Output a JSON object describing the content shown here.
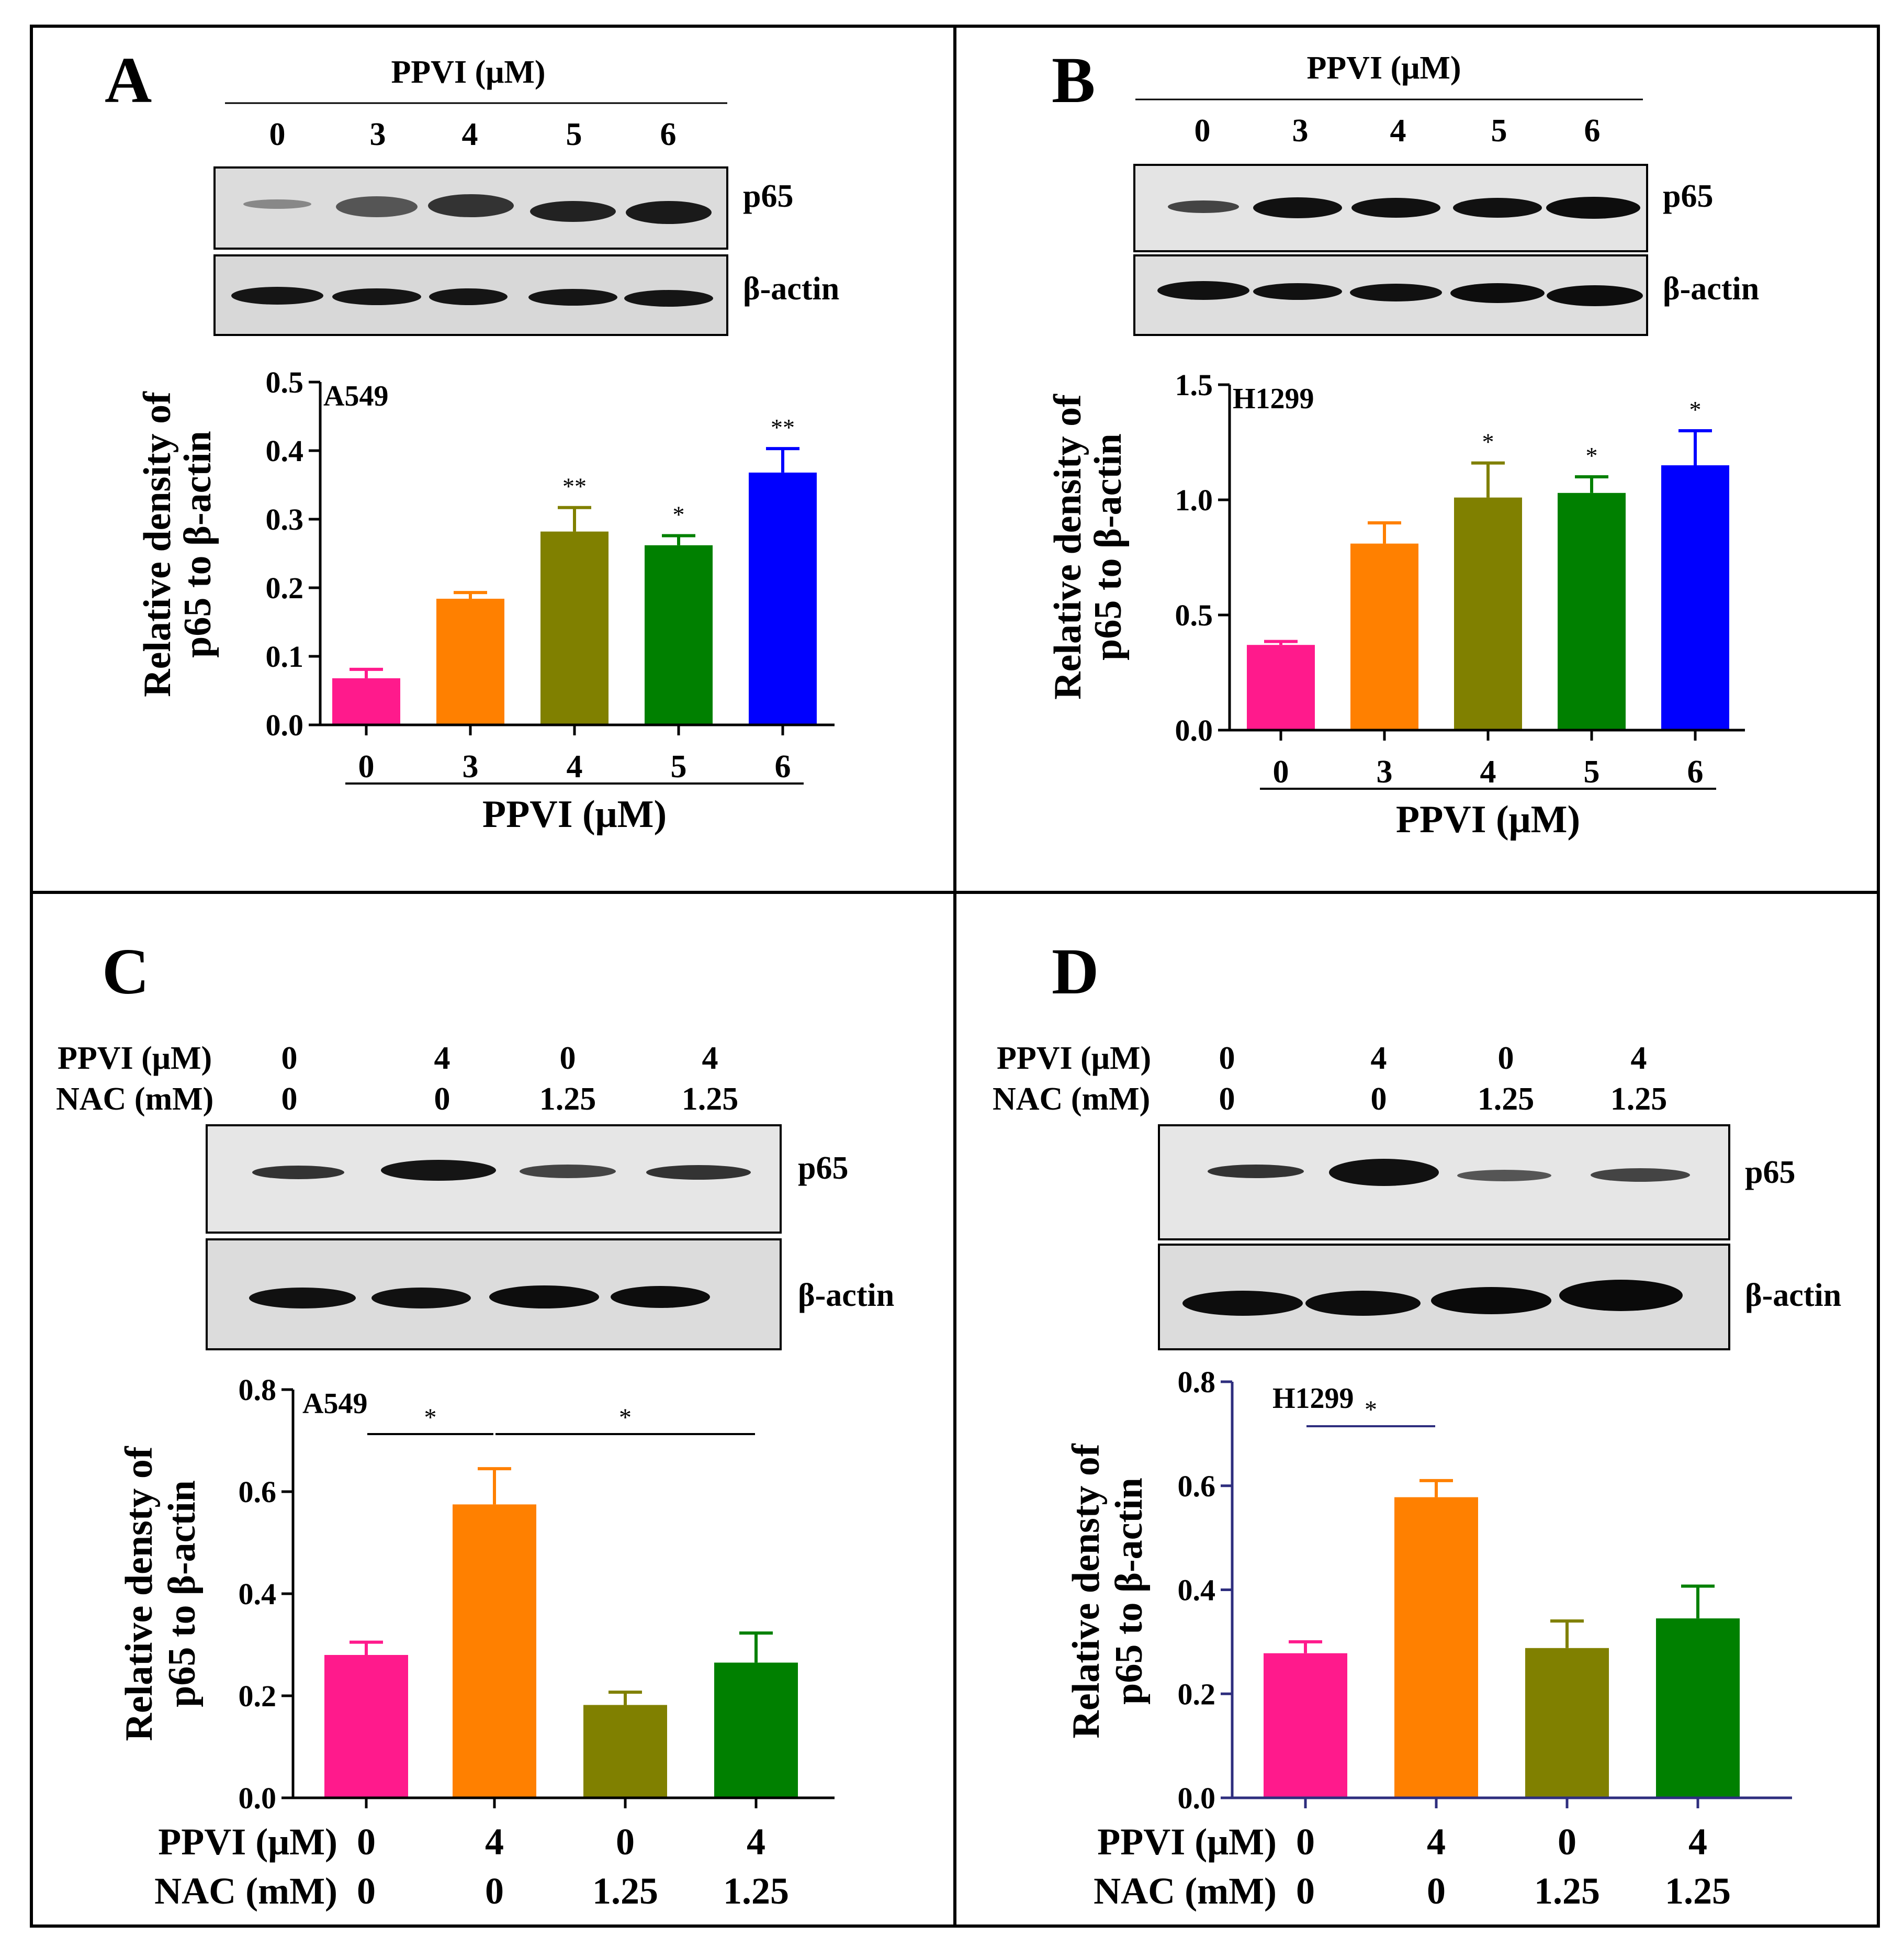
{
  "panels": [
    {
      "letter": "A",
      "blot": {
        "header_title": "PPVI (μM)",
        "header_lanes": [
          "0",
          "3",
          "4",
          "5",
          "6"
        ],
        "band_labels": [
          "p65",
          "β-actin"
        ]
      },
      "chart_data": {
        "type": "bar",
        "cell_line": "A549",
        "ylabel_lines": [
          "Relative density of",
          "p65 to β-actin"
        ],
        "xlabel": "PPVI (μM)",
        "categories": [
          "0",
          "3",
          "4",
          "5",
          "6"
        ],
        "values": [
          0.068,
          0.184,
          0.282,
          0.262,
          0.368
        ],
        "errors": [
          0.013,
          0.009,
          0.035,
          0.014,
          0.035
        ],
        "significance": [
          "",
          "",
          "**",
          "*",
          "**"
        ],
        "colors": [
          "#ff1a8c",
          "#ff8000",
          "#808000",
          "#008000",
          "#0000ff"
        ],
        "ylim": [
          0,
          0.5
        ],
        "yticks": [
          "0.0",
          "0.1",
          "0.2",
          "0.3",
          "0.4",
          "0.5"
        ]
      }
    },
    {
      "letter": "B",
      "blot": {
        "header_title": "PPVI (μM)",
        "header_lanes": [
          "0",
          "3",
          "4",
          "5",
          "6"
        ],
        "band_labels": [
          "p65",
          "β-actin"
        ]
      },
      "chart_data": {
        "type": "bar",
        "cell_line": "H1299",
        "ylabel_lines": [
          "Relative density of",
          "p65 to β-actin"
        ],
        "xlabel": "PPVI (μM)",
        "categories": [
          "0",
          "3",
          "4",
          "5",
          "6"
        ],
        "values": [
          0.37,
          0.81,
          1.01,
          1.03,
          1.15
        ],
        "errors": [
          0.015,
          0.09,
          0.15,
          0.07,
          0.15
        ],
        "significance": [
          "",
          "",
          "*",
          "*",
          "*"
        ],
        "colors": [
          "#ff1a8c",
          "#ff8000",
          "#808000",
          "#008000",
          "#0000ff"
        ],
        "ylim": [
          0,
          1.5
        ],
        "yticks": [
          "0.0",
          "0.5",
          "1.0",
          "1.5"
        ]
      }
    },
    {
      "letter": "C",
      "blot": {
        "row_labels": [
          "PPVI (μM)",
          "NAC (mM)"
        ],
        "row_values": [
          [
            "0",
            "4",
            "0",
            "4"
          ],
          [
            "0",
            "0",
            "1.25",
            "1.25"
          ]
        ],
        "band_labels": [
          "p65",
          "β-actin"
        ]
      },
      "chart_data": {
        "type": "bar",
        "cell_line": "A549",
        "ylabel_lines": [
          "Relative densty of",
          "p65 to β-actin"
        ],
        "row_labels": [
          "PPVI (μM)",
          "NAC (mM)"
        ],
        "rows": [
          [
            "0",
            "4",
            "0",
            "4"
          ],
          [
            "0",
            "0",
            "1.25",
            "1.25"
          ]
        ],
        "values": [
          0.28,
          0.575,
          0.182,
          0.265
        ],
        "errors": [
          0.025,
          0.07,
          0.025,
          0.058
        ],
        "colors": [
          "#ff1a8c",
          "#ff8000",
          "#808000",
          "#008000"
        ],
        "ylim": [
          0,
          0.8
        ],
        "yticks": [
          "0.0",
          "0.2",
          "0.4",
          "0.6",
          "0.8"
        ],
        "brackets": [
          {
            "from": 0,
            "to": 1,
            "label": "*"
          },
          {
            "from": 1,
            "to": 3,
            "label": "*"
          }
        ]
      }
    },
    {
      "letter": "D",
      "blot": {
        "row_labels": [
          "PPVI (μM)",
          "NAC (mM)"
        ],
        "row_values": [
          [
            "0",
            "4",
            "0",
            "4"
          ],
          [
            "0",
            "0",
            "1.25",
            "1.25"
          ]
        ],
        "band_labels": [
          "p65",
          "β-actin"
        ]
      },
      "chart_data": {
        "type": "bar",
        "cell_line": "H1299",
        "ylabel_lines": [
          "Relative densty of",
          "p65 to β-actin"
        ],
        "row_labels": [
          "PPVI (μM)",
          "NAC (mM)"
        ],
        "rows": [
          [
            "0",
            "4",
            "0",
            "4"
          ],
          [
            "0",
            "0",
            "1.25",
            "1.25"
          ]
        ],
        "values": [
          0.278,
          0.578,
          0.288,
          0.345
        ],
        "errors": [
          0.022,
          0.032,
          0.052,
          0.062
        ],
        "colors": [
          "#ff1a8c",
          "#ff8000",
          "#808000",
          "#008000"
        ],
        "ylim": [
          0,
          0.8
        ],
        "yticks": [
          "0.0",
          "0.2",
          "0.4",
          "0.6",
          "0.8"
        ],
        "brackets": [
          {
            "from": 0,
            "to": 1,
            "label": "*"
          }
        ]
      }
    }
  ]
}
